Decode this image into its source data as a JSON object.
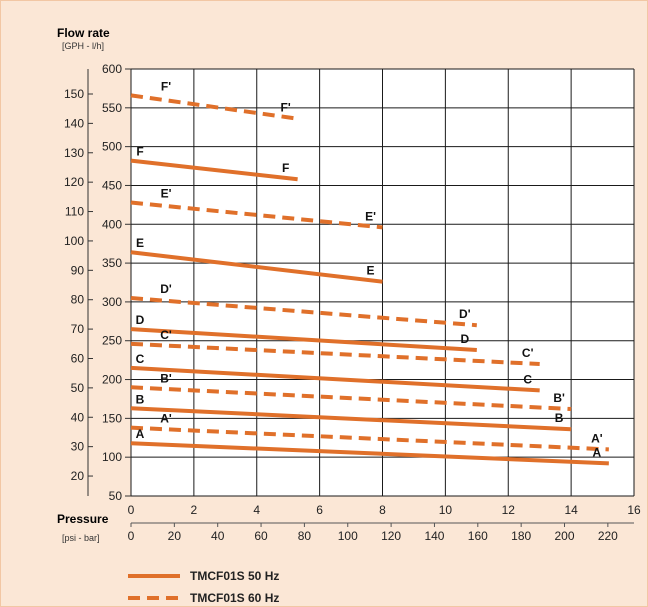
{
  "chart_data": {
    "type": "line",
    "y_title": "Flow rate",
    "y_unit": "[GPH - l/h]",
    "x_title": "Pressure",
    "x_unit": "[psi - bar]",
    "x_bar_range": [
      0,
      16
    ],
    "x_bar_ticks": [
      "0",
      "2",
      "4",
      "6",
      "8",
      "10",
      "12",
      "14",
      "16"
    ],
    "x_psi_ticks": [
      "0",
      "20",
      "40",
      "60",
      "80",
      "100",
      "120",
      "140",
      "160",
      "180",
      "200",
      "220"
    ],
    "y_lh_range": [
      50,
      600
    ],
    "y_lh_ticks": [
      "50",
      "100",
      "150",
      "200",
      "250",
      "300",
      "350",
      "400",
      "450",
      "500",
      "550",
      "600"
    ],
    "y_gph_ticks": [
      "20",
      "30",
      "40",
      "50",
      "60",
      "70",
      "80",
      "90",
      "100",
      "110",
      "120",
      "130",
      "140",
      "150"
    ],
    "legend": [
      {
        "label": "TMCF01S 50 Hz",
        "style": "solid"
      },
      {
        "label": "TMCF01S 60 Hz",
        "style": "dashed"
      }
    ],
    "color": "#e0702a",
    "series": [
      {
        "label": "A",
        "style": "solid",
        "x": [
          0,
          15.2
        ],
        "y": [
          118,
          92
        ]
      },
      {
        "label": "A'",
        "style": "dashed",
        "x": [
          0,
          15.2
        ],
        "y": [
          138,
          110
        ]
      },
      {
        "label": "B",
        "style": "solid",
        "x": [
          0,
          14
        ],
        "y": [
          163,
          136
        ]
      },
      {
        "label": "B'",
        "style": "dashed",
        "x": [
          0,
          14
        ],
        "y": [
          190,
          162
        ]
      },
      {
        "label": "C",
        "style": "solid",
        "x": [
          0,
          13
        ],
        "y": [
          215,
          186
        ]
      },
      {
        "label": "C'",
        "style": "dashed",
        "x": [
          0,
          13
        ],
        "y": [
          246,
          220
        ]
      },
      {
        "label": "D",
        "style": "solid",
        "x": [
          0,
          11
        ],
        "y": [
          265,
          238
        ]
      },
      {
        "label": "D'",
        "style": "dashed",
        "x": [
          0,
          11
        ],
        "y": [
          305,
          270
        ]
      },
      {
        "label": "E",
        "style": "solid",
        "x": [
          0,
          8
        ],
        "y": [
          364,
          326
        ]
      },
      {
        "label": "E'",
        "style": "dashed",
        "x": [
          0,
          8
        ],
        "y": [
          428,
          396
        ]
      },
      {
        "label": "F",
        "style": "solid",
        "x": [
          0,
          5.3
        ],
        "y": [
          482,
          458
        ]
      },
      {
        "label": "F'",
        "style": "dashed",
        "x": [
          0,
          5.3
        ],
        "y": [
          566,
          536
        ]
      }
    ]
  }
}
